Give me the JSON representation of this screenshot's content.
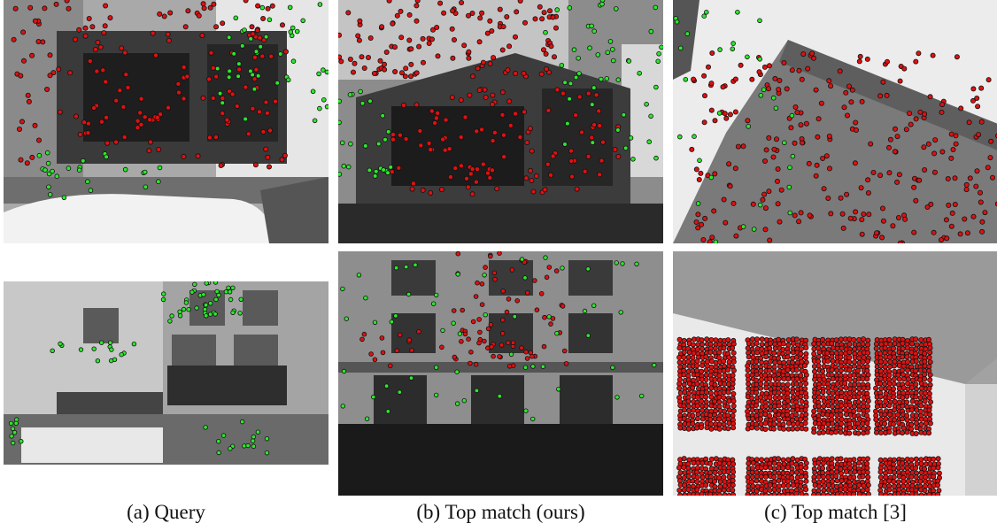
{
  "captions": {
    "query": "(a) Query",
    "ours": "(b) Top match (ours)",
    "baseline": "(c) Top match [3]"
  },
  "panels": [
    {
      "id": "query-top",
      "content": "grayscale street corner building with parked SUV, feature points overlaid"
    },
    {
      "id": "query-bottom",
      "content": "grayscale street facade with fire escapes, shop sign and flatbed truck"
    },
    {
      "id": "ours-top",
      "content": "grayscale corner building under tall tower, feature points overlaid"
    },
    {
      "id": "ours-bottom",
      "content": "grayscale multi-storey facade with fire escapes"
    },
    {
      "id": "baseline-top",
      "content": "grayscale tall building viewed from below"
    },
    {
      "id": "baseline-bottom",
      "content": "grayscale perforated-panel building facade against sky"
    }
  ],
  "marker_colors": {
    "inlier": "#2ee62e",
    "outlier": "#dd1111",
    "outline": "#111111"
  }
}
